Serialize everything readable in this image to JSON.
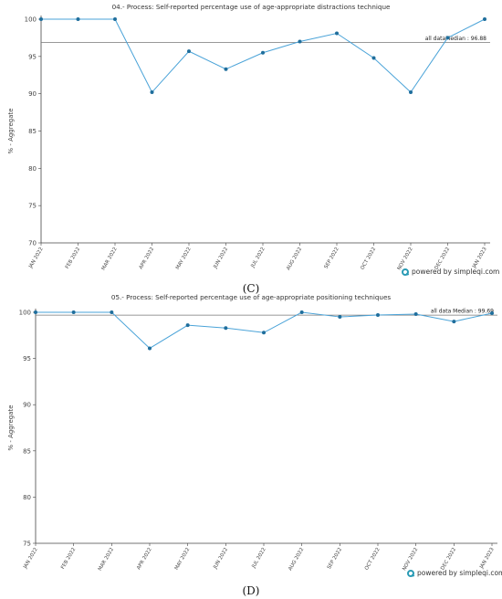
{
  "chart_data": [
    {
      "type": "line",
      "title": "04.- Process: Self-reported percentage use of age-appropriate distractions technique",
      "ylabel": "% - Aggregate",
      "xlabel": "",
      "categories": [
        "JAN 2022",
        "FEB 2022",
        "MAR 2022",
        "APR 2022",
        "MAY 2022",
        "JUN 2022",
        "JUL 2022",
        "AUG 2022",
        "SEP 2022",
        "OCT 2022",
        "NOV 2022",
        "DEC 2022",
        "JAN 2023"
      ],
      "series": [
        {
          "values": [
            100,
            100,
            100,
            90.2,
            95.7,
            93.3,
            95.5,
            97.0,
            98.1,
            94.8,
            90.2,
            97.5,
            100
          ]
        }
      ],
      "ylim": [
        70,
        100
      ],
      "yticks": [
        100,
        95,
        90,
        85,
        80,
        75,
        70
      ],
      "median": {
        "value": 96.88,
        "label": "all dataMedian : 96.88"
      },
      "powered_by": "powered by simpleqi.com",
      "caption": "(C)",
      "line_color": "#4aa3d8",
      "marker_color": "#1f6e9c"
    },
    {
      "type": "line",
      "title": "05.- Process: Self-reported percentage use of age-appropriate positioning techniques",
      "ylabel": "% - Aggregate",
      "xlabel": "",
      "categories": [
        "JAN 2022",
        "FEB 2022",
        "MAR 2022",
        "APR 2022",
        "MAY 2022",
        "JUN 2022",
        "JUL 2022",
        "AUG 2022",
        "SEP 2022",
        "OCT 2022",
        "NOV 2022",
        "DEC 2022",
        "JAN 2023"
      ],
      "series": [
        {
          "values": [
            100,
            100,
            100,
            96.1,
            98.6,
            98.3,
            97.8,
            100,
            99.5,
            99.7,
            99.8,
            99.0,
            99.9
          ]
        }
      ],
      "ylim": [
        75,
        100
      ],
      "yticks": [
        100,
        95,
        90,
        85,
        80,
        75
      ],
      "median": {
        "value": 99.69,
        "label": "all data Median : 99.69"
      },
      "powered_by": "powered by simpleqi.com",
      "caption": "(D)",
      "line_color": "#4aa3d8",
      "marker_color": "#1f6e9c"
    }
  ]
}
